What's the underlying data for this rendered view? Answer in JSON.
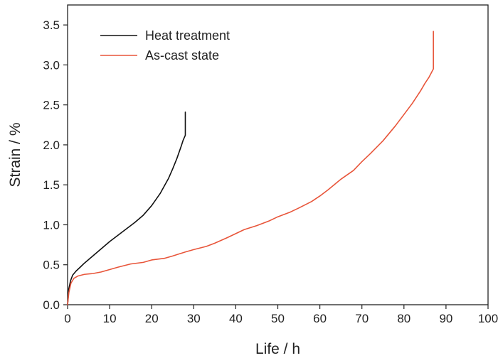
{
  "chart_data": {
    "type": "line",
    "xlabel": "Life / h",
    "ylabel": "Strain / %",
    "xlim": [
      0,
      100
    ],
    "ylim": [
      0,
      3.75
    ],
    "xticks": [
      0,
      10,
      20,
      30,
      40,
      50,
      60,
      70,
      80,
      90,
      100
    ],
    "yticks": [
      0.0,
      0.5,
      1.0,
      1.5,
      2.0,
      2.5,
      3.0,
      3.5
    ],
    "ytick_labels": [
      "0.0",
      "0.5",
      "1.0",
      "1.5",
      "2.0",
      "2.5",
      "3.0",
      "3.5"
    ],
    "grid": false,
    "legend_position": "top-left",
    "series": [
      {
        "name": "Heat treatment",
        "color": "#111111",
        "x": [
          0,
          0.3,
          0.7,
          1.2,
          2,
          3,
          4,
          6,
          8,
          10,
          12,
          14,
          16,
          18,
          20,
          22,
          24,
          25,
          26,
          27,
          27.5,
          28,
          28,
          28
        ],
        "y": [
          0,
          0.2,
          0.3,
          0.37,
          0.42,
          0.47,
          0.52,
          0.61,
          0.7,
          0.79,
          0.87,
          0.95,
          1.03,
          1.12,
          1.24,
          1.39,
          1.58,
          1.7,
          1.83,
          1.98,
          2.06,
          2.12,
          2.25,
          2.41
        ]
      },
      {
        "name": "As-cast state",
        "color": "#e8553a",
        "x": [
          0,
          0.3,
          0.8,
          1.5,
          2.5,
          4,
          6,
          8,
          10,
          12,
          15,
          18,
          20,
          23,
          25,
          28,
          30,
          33,
          35,
          38,
          40,
          42,
          45,
          48,
          50,
          53,
          55,
          58,
          60,
          62,
          65,
          68,
          70,
          72,
          75,
          78,
          80,
          82,
          84,
          85,
          86,
          86.5,
          87,
          87,
          87
        ],
        "y": [
          0,
          0.15,
          0.27,
          0.33,
          0.36,
          0.38,
          0.39,
          0.41,
          0.44,
          0.47,
          0.51,
          0.53,
          0.56,
          0.58,
          0.61,
          0.66,
          0.69,
          0.73,
          0.77,
          0.84,
          0.89,
          0.94,
          0.99,
          1.05,
          1.1,
          1.16,
          1.21,
          1.29,
          1.36,
          1.44,
          1.57,
          1.68,
          1.79,
          1.89,
          2.05,
          2.24,
          2.38,
          2.52,
          2.68,
          2.77,
          2.85,
          2.9,
          2.95,
          3.15,
          3.42
        ]
      }
    ]
  }
}
